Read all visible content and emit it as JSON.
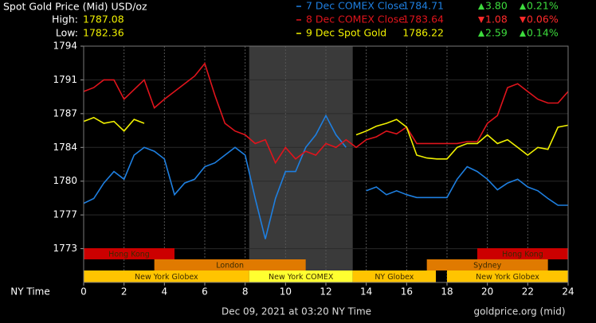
{
  "chart_data": {
    "type": "line",
    "title": "Spot Gold Price (Mid) USD/oz",
    "high_label": "High:",
    "high": "1787.08",
    "low_label": "Low:",
    "low": "1782.36",
    "x_label": "NY Time",
    "footer_left": "Dec 09, 2021 at 03:20 NY Time",
    "footer_right": "goldprice.org (mid)",
    "xlim": [
      0,
      24
    ],
    "xticks": [
      0,
      2,
      4,
      6,
      8,
      10,
      12,
      14,
      16,
      18,
      20,
      22,
      24
    ],
    "ylim": [
      1769.5,
      1794
    ],
    "yticks": [
      1794,
      {
        "value": 1790.5,
        "label": "1791"
      },
      1787,
      {
        "value": 1783.5,
        "label": "1784"
      },
      1780,
      {
        "value": 1776.5,
        "label": "1777"
      },
      1773
    ],
    "grid": true,
    "shaded_x": [
      8.2,
      13.33
    ],
    "sessions": [
      {
        "name": "Hong Kong",
        "start": 0,
        "end": 4.5,
        "row": 0,
        "color": "#cc0000"
      },
      {
        "name": "Hong Kong",
        "start": 19.5,
        "end": 24,
        "row": 0,
        "color": "#cc0000"
      },
      {
        "name": "London",
        "start": 3.5,
        "end": 11,
        "row": 1,
        "color": "#e07a00"
      },
      {
        "name": "Sydney",
        "start": 17,
        "end": 23,
        "row": 1,
        "color": "#e07a00"
      },
      {
        "name": "New York Globex",
        "start": 0,
        "end": 8.2,
        "row": 2,
        "color": "#ffc400"
      },
      {
        "name": "New York COMEX",
        "start": 8.2,
        "end": 13.33,
        "row": 2,
        "color": "#ffff30"
      },
      {
        "name": "NY Globex",
        "start": 13.33,
        "end": 17.45,
        "row": 2,
        "color": "#ffc400"
      },
      {
        "name": "New York Globex",
        "start": 18,
        "end": 24,
        "row": 2,
        "color": "#ffc400"
      }
    ],
    "x": [
      0,
      0.5,
      1,
      1.5,
      2,
      2.5,
      3,
      3.5,
      4,
      4.5,
      5,
      5.5,
      6,
      6.5,
      7,
      7.5,
      8,
      8.5,
      9,
      9.5,
      10,
      10.5,
      11,
      11.5,
      12,
      12.5,
      13,
      13.5,
      14,
      14.5,
      15,
      15.5,
      16,
      16.5,
      17,
      17.5,
      18,
      18.5,
      19,
      19.5,
      20,
      20.5,
      21,
      21.5,
      22,
      22.5,
      23,
      23.5,
      24
    ],
    "series": [
      {
        "name": "7 Dec COMEX Close",
        "color": "#1e7fe0",
        "close": "1784.71",
        "change": "3.80",
        "change_pct": "0.21%",
        "direction": "up",
        "values": [
          1777.7,
          1778.2,
          1779.8,
          1781.0,
          1780.2,
          1782.7,
          1783.5,
          1783.1,
          1782.3,
          1778.6,
          1779.8,
          1780.2,
          1781.5,
          1781.9,
          1782.7,
          1783.5,
          1782.7,
          1778.2,
          1774.0,
          1778.2,
          1781.0,
          1781.0,
          1783.5,
          1784.8,
          1786.8,
          1784.8,
          1783.5,
          null,
          1779.0,
          1779.4,
          1778.6,
          1779.0,
          1778.6,
          1778.3,
          1778.3,
          1778.3,
          1778.3,
          1780.2,
          1781.5,
          1781.0,
          1780.2,
          1779.1,
          1779.8,
          1780.2,
          1779.4,
          1779.0,
          1778.2,
          1777.5,
          1777.5
        ]
      },
      {
        "name": "8 Dec COMEX Close",
        "color": "#e0141c",
        "close": "1783.64",
        "change": "1.08",
        "change_pct": "0.06%",
        "direction": "down",
        "values": [
          1789.3,
          1789.7,
          1790.5,
          1790.5,
          1788.5,
          1789.5,
          1790.5,
          1787.6,
          1788.5,
          1789.3,
          1790.1,
          1790.9,
          1792.2,
          1788.9,
          1786.0,
          1785.2,
          1784.8,
          1783.9,
          1784.3,
          1781.9,
          1783.5,
          1782.3,
          1783.1,
          1782.7,
          1783.9,
          1783.5,
          1784.3,
          1783.5,
          1784.3,
          1784.6,
          1785.2,
          1784.9,
          1785.6,
          1783.9,
          1783.9,
          1783.9,
          1783.9,
          1783.9,
          1784.1,
          1784.1,
          1786.0,
          1786.8,
          1789.7,
          1790.1,
          1789.3,
          1788.5,
          1788.1,
          1788.1,
          1789.3
        ]
      },
      {
        "name": "9 Dec Spot Gold",
        "color": "#f0f000",
        "close": "1786.22",
        "change": "2.59",
        "change_pct": "0.14%",
        "direction": "up",
        "values": [
          1786.2,
          1786.6,
          1786.0,
          1786.2,
          1785.2,
          1786.4,
          1786.0,
          null,
          null,
          null,
          null,
          null,
          null,
          null,
          null,
          null,
          null,
          null,
          null,
          null,
          null,
          null,
          null,
          null,
          null,
          null,
          null,
          1784.8,
          1785.2,
          1785.7,
          1786.0,
          1786.4,
          1785.6,
          1782.7,
          1782.4,
          1782.3,
          1782.3,
          1783.5,
          1783.9,
          1783.9,
          1784.8,
          1783.9,
          1784.3,
          1783.5,
          1782.7,
          1783.5,
          1783.3,
          1785.6,
          1785.8
        ]
      }
    ]
  }
}
